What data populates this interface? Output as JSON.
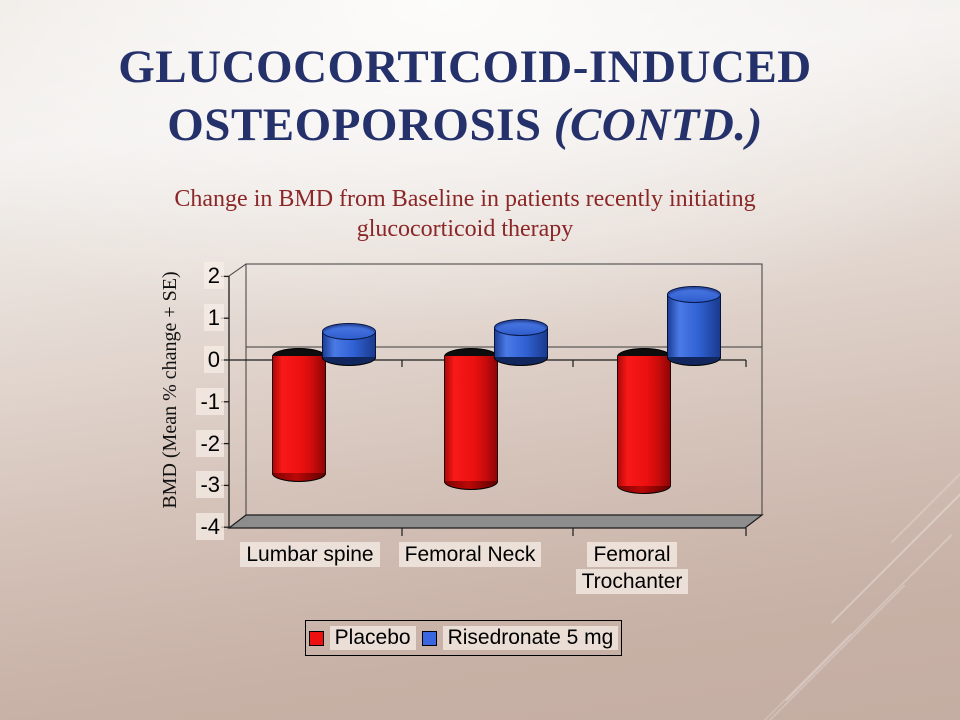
{
  "slide": {
    "title": {
      "line1": "GLUCOCORTICOID-INDUCED",
      "line2_regular": "OSTEOPOROSIS ",
      "line2_italic": "(CONTD.)"
    },
    "subtitle": {
      "line1": "Change in BMD from Baseline in patients recently initiating",
      "line2": "glucocorticoid therapy"
    }
  },
  "chart_data": {
    "type": "bar",
    "style": "3d-cylinder",
    "categories": [
      "Lumbar spine",
      "Femoral Neck",
      "Femoral Trochanter"
    ],
    "series": [
      {
        "name": "Placebo",
        "color": "#ee1010",
        "values": [
          -2.8,
          -3.0,
          -3.1
        ]
      },
      {
        "name": "Risedronate 5 mg",
        "color": "#3a66e0",
        "values": [
          0.6,
          0.7,
          1.5
        ]
      }
    ],
    "ylabel": "BMD (Mean % change + SE)",
    "yticks": [
      2,
      1,
      0,
      -1,
      -2,
      -3,
      -4
    ],
    "ylim": [
      -4,
      2
    ],
    "grid": "zero-line-only",
    "legend_position": "bottom"
  },
  "colors": {
    "title": "#25316b",
    "subtitle": "#8b2727",
    "floor": "#8d8d8d",
    "wall_line": "#3c3c3c",
    "axis_line": "#1c1c1c",
    "label_box": "#f0e6df"
  }
}
